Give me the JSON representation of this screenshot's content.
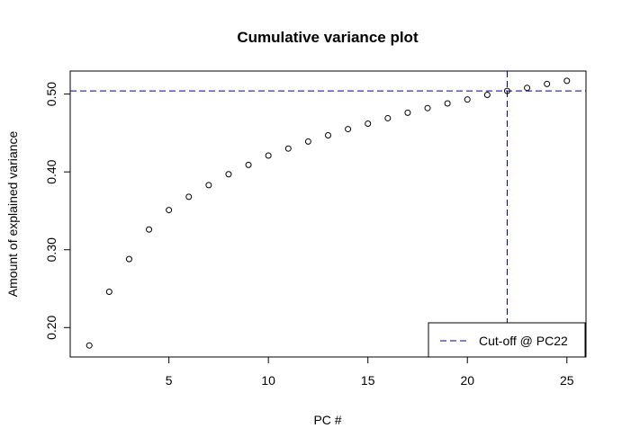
{
  "chart_data": {
    "type": "scatter",
    "title": "Cumulative variance plot",
    "xlabel": "PC #",
    "ylabel": "Amount of explained variance",
    "xlim": [
      0.04,
      25.96
    ],
    "ylim": [
      0.1622,
      0.5296
    ],
    "xticks": [
      5,
      10,
      15,
      20,
      25
    ],
    "yticks": [
      0.2,
      0.3,
      0.4,
      0.5
    ],
    "ytick_labels": [
      "0.20",
      "0.30",
      "0.40",
      "0.50"
    ],
    "series": [
      {
        "x": [
          1,
          2,
          3,
          4,
          5,
          6,
          7,
          8,
          9,
          10,
          11,
          12,
          13,
          14,
          15,
          16,
          17,
          18,
          19,
          20,
          21,
          22,
          23,
          24,
          25
        ],
        "y": [
          0.177,
          0.246,
          0.288,
          0.326,
          0.351,
          0.368,
          0.383,
          0.397,
          0.409,
          0.421,
          0.43,
          0.439,
          0.447,
          0.455,
          0.462,
          0.469,
          0.476,
          0.482,
          0.488,
          0.493,
          0.499,
          0.504,
          0.508,
          0.513,
          0.517
        ]
      }
    ],
    "cutoff": {
      "x": 22,
      "y": 0.504,
      "color": "#00008B",
      "style": "dashed"
    },
    "legend": {
      "position": "bottom-right",
      "entries": [
        "Cut-off @ PC22"
      ]
    },
    "grid": false
  }
}
